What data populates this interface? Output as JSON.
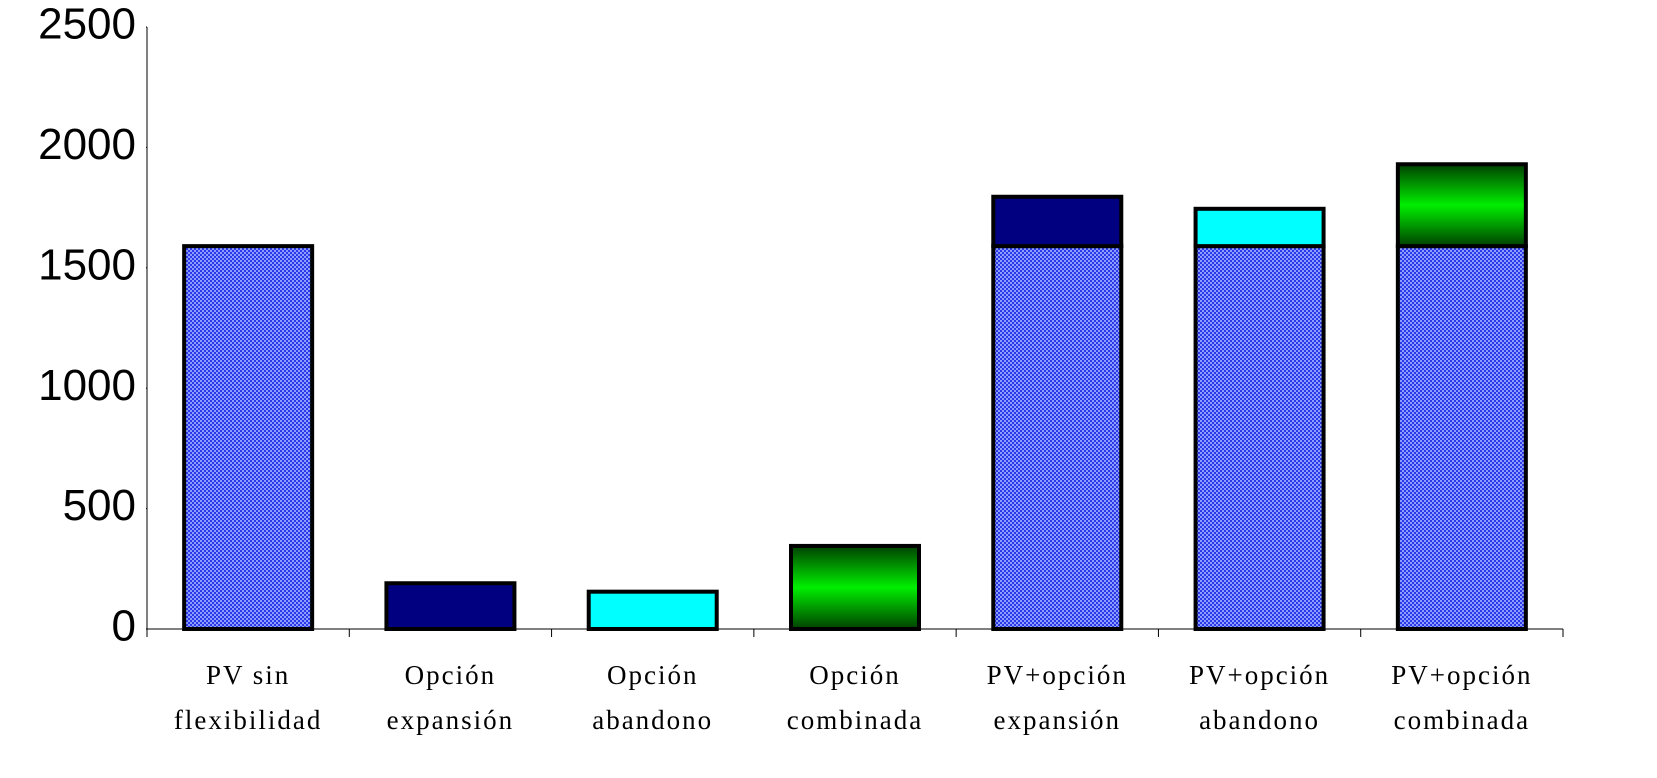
{
  "chart_data": {
    "type": "stacked_bar",
    "categories": [
      [
        "PV sin",
        "flexibilidad"
      ],
      [
        "Opción",
        "expansión"
      ],
      [
        "Opción",
        "abandono"
      ],
      [
        "Opción",
        "combinada"
      ],
      [
        "PV+opción",
        "expansión"
      ],
      [
        "PV+opción",
        "abandono"
      ],
      [
        "PV+opción",
        "combinada"
      ]
    ],
    "series": [
      {
        "color": "#3a4cf5",
        "values": [
          1590,
          null,
          null,
          null,
          1590,
          1590,
          1590
        ]
      },
      {
        "color": "#000080",
        "values": [
          null,
          190,
          null,
          null,
          205,
          null,
          null
        ]
      },
      {
        "color": "#00ffff",
        "values": [
          null,
          null,
          155,
          null,
          null,
          155,
          null
        ]
      },
      {
        "color": "#00ee00",
        "values": [
          null,
          null,
          null,
          345,
          null,
          null,
          340
        ]
      }
    ],
    "ylim": [
      0,
      2500
    ],
    "yticks": [
      0,
      500,
      1000,
      1500,
      2000,
      2500
    ]
  }
}
